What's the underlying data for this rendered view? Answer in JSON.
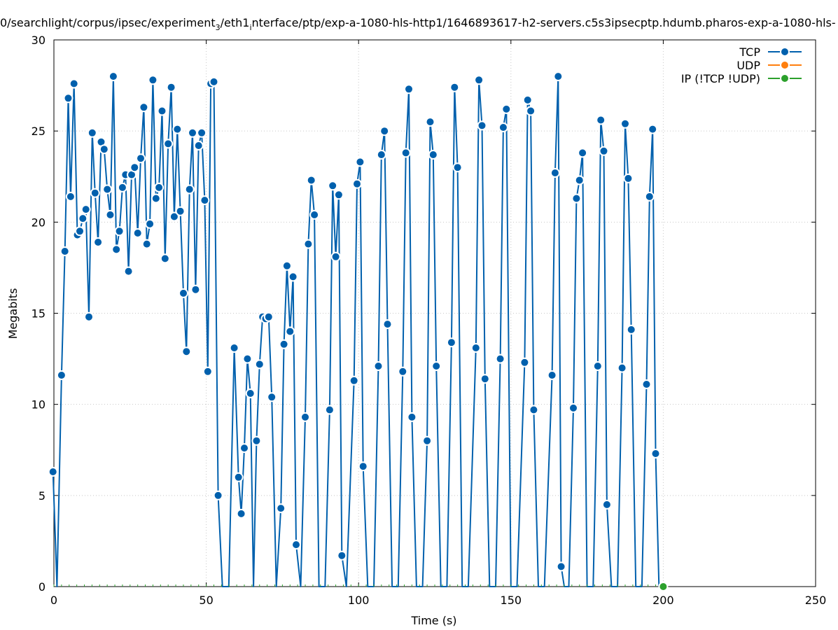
{
  "chart_data": {
    "type": "line",
    "title": "0/searchlight/corpus/ipsec/experiment_3/eth1_interface/ptp/exp-a-1080-hls-http1/1646893617-h2-servers.c5s3ipsecptp.hdumb.pharos-exp-a-1080-hls-",
    "title_parts": {
      "a": "0/searchlight/corpus/ipsec/experiment",
      "sub1": "3",
      "b": "/eth1",
      "sub2": "i",
      "c": "nterface/ptp/exp-a-1080-hls-http1/1646893617-h2-servers.c5s3ipsecptp.hdumb.pharos-exp-a-1080-hls-"
    },
    "xlabel": "Time (s)",
    "ylabel": "Megabits",
    "xlim": [
      0,
      250
    ],
    "ylim": [
      0,
      30
    ],
    "x_ticks": [
      "0",
      "50",
      "100",
      "150",
      "200",
      "250"
    ],
    "y_ticks": [
      "0",
      "5",
      "10",
      "15",
      "20",
      "25",
      "30"
    ],
    "grid": true,
    "legend_position": "top-right",
    "series": [
      {
        "name": "TCP",
        "color": "#0060ad",
        "points": [
          [
            -0.3,
            6.3
          ],
          [
            1,
            0
          ],
          [
            2.5,
            11.6
          ],
          [
            3.6,
            18.4
          ],
          [
            4.7,
            26.8
          ],
          [
            5.5,
            21.4
          ],
          [
            6.6,
            27.6
          ],
          [
            7.7,
            19.3
          ],
          [
            8.5,
            19.5
          ],
          [
            9.5,
            20.2
          ],
          [
            10.5,
            20.7
          ],
          [
            11.5,
            14.8
          ],
          [
            12.6,
            24.9
          ],
          [
            13.5,
            21.6
          ],
          [
            14.5,
            18.9
          ],
          [
            15.5,
            24.4
          ],
          [
            16.5,
            24.0
          ],
          [
            17.5,
            21.8
          ],
          [
            18.5,
            20.4
          ],
          [
            19.5,
            28.0
          ],
          [
            20.5,
            18.5
          ],
          [
            21.5,
            19.5
          ],
          [
            22.5,
            21.9
          ],
          [
            23.5,
            22.6
          ],
          [
            24.5,
            17.3
          ],
          [
            25.5,
            22.6
          ],
          [
            26.5,
            23.0
          ],
          [
            27.5,
            19.4
          ],
          [
            28.5,
            23.5
          ],
          [
            29.5,
            26.3
          ],
          [
            30.5,
            18.8
          ],
          [
            31.5,
            19.9
          ],
          [
            32.5,
            27.8
          ],
          [
            33.5,
            21.3
          ],
          [
            34.5,
            21.9
          ],
          [
            35.5,
            26.1
          ],
          [
            36.5,
            18.0
          ],
          [
            37.5,
            24.3
          ],
          [
            38.5,
            27.4
          ],
          [
            39.5,
            20.3
          ],
          [
            40.5,
            25.1
          ],
          [
            41.5,
            20.6
          ],
          [
            42.5,
            16.1
          ],
          [
            43.5,
            12.9
          ],
          [
            44.5,
            21.8
          ],
          [
            45.5,
            24.9
          ],
          [
            46.5,
            16.3
          ],
          [
            47.5,
            24.2
          ],
          [
            48.5,
            24.9
          ],
          [
            49.5,
            21.2
          ],
          [
            50.5,
            11.8
          ],
          [
            51.5,
            27.6
          ],
          [
            52.5,
            27.7
          ],
          [
            53.9,
            5.0
          ],
          [
            55.3,
            0
          ],
          [
            57.4,
            0
          ],
          [
            59.2,
            13.1
          ],
          [
            60.6,
            6.0
          ],
          [
            61.5,
            4.0
          ],
          [
            62.5,
            7.6
          ],
          [
            63.5,
            12.5
          ],
          [
            64.5,
            10.6
          ],
          [
            65.5,
            0
          ],
          [
            66.5,
            8.0
          ],
          [
            67.5,
            12.2
          ],
          [
            68.5,
            14.8
          ],
          [
            69.5,
            14.7
          ],
          [
            70.5,
            14.8
          ],
          [
            71.5,
            10.4
          ],
          [
            73,
            0
          ],
          [
            74.5,
            4.3
          ],
          [
            75.5,
            13.3
          ],
          [
            76.5,
            17.6
          ],
          [
            77.5,
            14.0
          ],
          [
            78.5,
            17.0
          ],
          [
            79.5,
            2.3
          ],
          [
            81,
            0
          ],
          [
            82.5,
            9.3
          ],
          [
            83.5,
            18.8
          ],
          [
            84.5,
            22.3
          ],
          [
            85.5,
            20.4
          ],
          [
            87,
            0
          ],
          [
            89,
            0
          ],
          [
            90.5,
            9.7
          ],
          [
            91.5,
            22.0
          ],
          [
            92.5,
            18.1
          ],
          [
            93.5,
            21.5
          ],
          [
            94.5,
            1.7
          ],
          [
            96,
            0
          ],
          [
            98.5,
            11.3
          ],
          [
            99.5,
            22.1
          ],
          [
            100.5,
            23.3
          ],
          [
            101.5,
            6.6
          ],
          [
            103,
            0
          ],
          [
            105,
            0
          ],
          [
            106.5,
            12.1
          ],
          [
            107.5,
            23.7
          ],
          [
            108.5,
            25.0
          ],
          [
            109.5,
            14.4
          ],
          [
            111,
            0
          ],
          [
            113,
            0
          ],
          [
            114.5,
            11.8
          ],
          [
            115.5,
            23.8
          ],
          [
            116.5,
            27.3
          ],
          [
            117.5,
            9.3
          ],
          [
            119,
            0
          ],
          [
            121,
            0
          ],
          [
            122.5,
            8.0
          ],
          [
            123.5,
            25.5
          ],
          [
            124.5,
            23.7
          ],
          [
            125.5,
            12.1
          ],
          [
            127,
            0
          ],
          [
            129,
            0
          ],
          [
            130.5,
            13.4
          ],
          [
            131.5,
            27.4
          ],
          [
            132.5,
            23.0
          ],
          [
            134,
            0
          ],
          [
            136,
            0
          ],
          [
            138.5,
            13.1
          ],
          [
            139.5,
            27.8
          ],
          [
            140.5,
            25.3
          ],
          [
            141.5,
            11.4
          ],
          [
            143,
            0
          ],
          [
            145,
            0
          ],
          [
            146.5,
            12.5
          ],
          [
            147.5,
            25.2
          ],
          [
            148.5,
            26.2
          ],
          [
            150,
            0
          ],
          [
            152,
            0
          ],
          [
            154.5,
            12.3
          ],
          [
            155.5,
            26.7
          ],
          [
            156.5,
            26.1
          ],
          [
            157.5,
            9.7
          ],
          [
            159,
            0
          ],
          [
            161,
            0
          ],
          [
            163.5,
            11.6
          ],
          [
            164.5,
            22.7
          ],
          [
            165.5,
            28.0
          ],
          [
            166.5,
            1.1
          ],
          [
            167.5,
            0
          ],
          [
            169,
            0
          ],
          [
            170.5,
            9.8
          ],
          [
            171.5,
            21.3
          ],
          [
            172.5,
            22.3
          ],
          [
            173.5,
            23.8
          ],
          [
            175,
            0
          ],
          [
            177,
            0
          ],
          [
            178.5,
            12.1
          ],
          [
            179.5,
            25.6
          ],
          [
            180.5,
            23.9
          ],
          [
            181.5,
            4.5
          ],
          [
            183,
            0
          ],
          [
            185,
            0
          ],
          [
            186.5,
            12.0
          ],
          [
            187.5,
            25.4
          ],
          [
            188.5,
            22.4
          ],
          [
            189.5,
            14.1
          ],
          [
            191,
            0
          ],
          [
            193,
            0
          ],
          [
            194.5,
            11.1
          ],
          [
            195.5,
            21.4
          ],
          [
            196.5,
            25.1
          ],
          [
            197.5,
            7.3
          ],
          [
            198.6,
            0
          ]
        ]
      },
      {
        "name": "UDP",
        "color": "#ff7f0e",
        "points": []
      },
      {
        "name": "IP (!TCP  !UDP)",
        "color": "#2ca02c",
        "points": [
          [
            200,
            0
          ]
        ]
      }
    ]
  }
}
